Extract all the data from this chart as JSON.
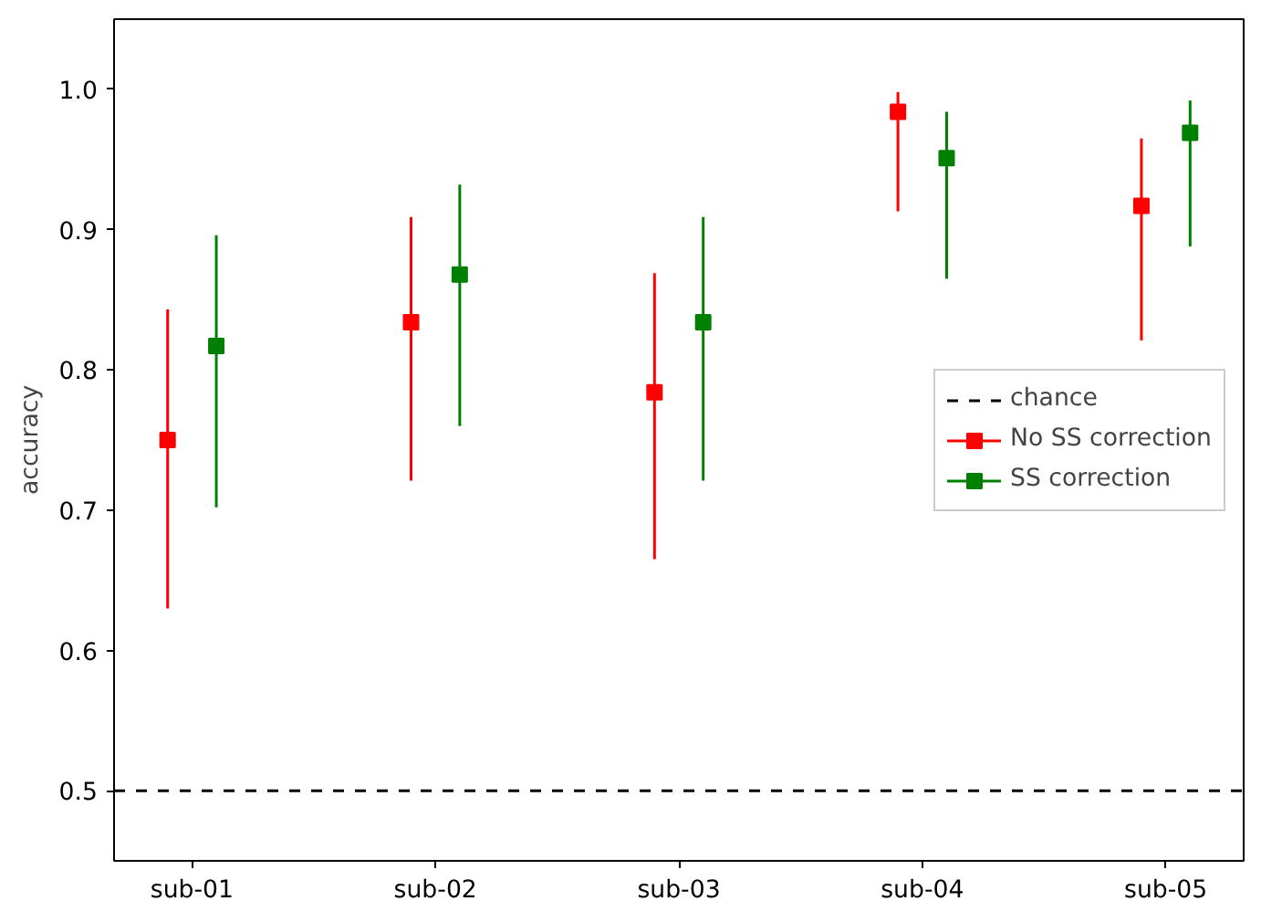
{
  "chart_data": {
    "type": "scatter",
    "ylabel": "accuracy",
    "categories": [
      "sub-01",
      "sub-02",
      "sub-03",
      "sub-04",
      "sub-05"
    ],
    "series": [
      {
        "name": "No SS correction",
        "color": "#ff0000",
        "values": [
          0.75,
          0.834,
          0.784,
          0.984,
          0.917
        ],
        "errors": [
          [
            0.63,
            0.843
          ],
          [
            0.721,
            0.909
          ],
          [
            0.665,
            0.869
          ],
          [
            0.913,
            0.998
          ],
          [
            0.821,
            0.965
          ]
        ]
      },
      {
        "name": "SS correction",
        "color": "#008000",
        "values": [
          0.817,
          0.868,
          0.834,
          0.951,
          0.969
        ],
        "errors": [
          [
            0.702,
            0.896
          ],
          [
            0.76,
            0.932
          ],
          [
            0.721,
            0.909
          ],
          [
            0.865,
            0.984
          ],
          [
            0.888,
            0.992
          ]
        ]
      }
    ],
    "ref_lines": [
      {
        "axis": "y",
        "value": 0.5,
        "label": "chance",
        "color": "#000000",
        "line_style": "dashed"
      }
    ],
    "ylim": [
      0.45,
      1.05
    ],
    "yticks": [
      0.5,
      0.6,
      0.7,
      0.8,
      0.9,
      {
        "value": 1.0,
        "label": "1.0"
      }
    ],
    "marker": "square",
    "grid": false,
    "legend": "right"
  }
}
